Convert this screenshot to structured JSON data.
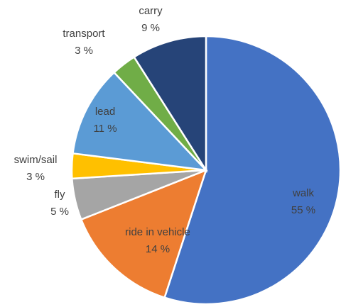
{
  "chart_data": {
    "type": "pie",
    "categories": [
      "walk",
      "ride in vehicle",
      "fly",
      "swim/sail",
      "lead",
      "transport",
      "carry"
    ],
    "values": [
      55,
      14,
      5,
      3,
      11,
      3,
      9
    ],
    "value_labels": [
      "55 %",
      "14 %",
      "5 %",
      "3 %",
      "11 %",
      "3 %",
      "9 %"
    ],
    "colors": [
      "#4472c4",
      "#ed7d31",
      "#a5a5a5",
      "#ffc000",
      "#5b9bd5",
      "#70ad47",
      "#264478"
    ],
    "start_angle": 0,
    "direction": "clockwise"
  }
}
